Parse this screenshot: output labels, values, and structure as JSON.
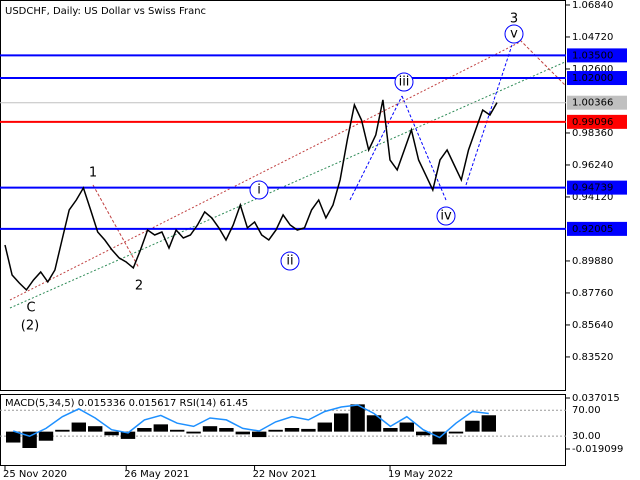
{
  "chart_data": [
    {
      "type": "line",
      "title": "USDCHF, Daily:  US Dollar vs Swiss Franc",
      "categories": [
        "25 Nov 2020",
        null,
        null,
        null,
        null,
        null,
        null,
        null,
        null,
        null,
        null,
        null,
        null,
        null,
        null,
        null,
        null,
        "26 May 2021",
        null,
        null,
        null,
        null,
        null,
        null,
        null,
        null,
        null,
        null,
        null,
        null,
        null,
        null,
        null,
        null,
        null,
        "22 Nov 2021",
        null,
        null,
        null,
        null,
        null,
        null,
        null,
        null,
        null,
        null,
        null,
        null,
        null,
        null,
        null,
        null,
        null,
        null,
        "19 May 2022",
        null,
        null,
        null,
        null,
        null,
        null,
        null,
        null,
        null,
        null,
        null,
        null,
        null,
        null,
        null
      ],
      "color": "#000000",
      "values": [
        0.9094,
        0.8895,
        0.8842,
        0.8796,
        0.8862,
        0.8915,
        0.8849,
        0.8928,
        0.9127,
        0.9326,
        0.9392,
        0.9472,
        0.9326,
        0.918,
        0.9127,
        0.9061,
        0.9008,
        0.8981,
        0.8942,
        0.9061,
        0.9193,
        0.916,
        0.918,
        0.9074,
        0.9193,
        0.914,
        0.916,
        0.9226,
        0.9313,
        0.9273,
        0.9207,
        0.9127,
        0.9226,
        0.9359,
        0.9207,
        0.9246,
        0.916,
        0.9127,
        0.9193,
        0.9293,
        0.9226,
        0.9193,
        0.9207,
        0.9326,
        0.9392,
        0.9273,
        0.9359,
        0.9525,
        0.979,
        1.0022,
        0.9922,
        0.9723,
        0.9823,
        1.0055,
        0.9657,
        0.9591,
        0.9723,
        0.9856,
        0.9657,
        0.9558,
        0.9458,
        0.9657,
        0.9723,
        0.9624,
        0.9525,
        0.9723,
        0.9856,
        0.9988,
        0.9955,
        1.0037
      ],
      "ylim": [
        0.8133,
        1.0717
      ],
      "yticks": [
        {
          "value": 1.0684,
          "label": "1.06840"
        },
        {
          "value": 1.0472,
          "label": "1.04720"
        },
        {
          "value": 1.026,
          "label": "1.02600"
        },
        {
          "value": 0.9836,
          "label": "0.98360"
        },
        {
          "value": 0.9624,
          "label": "0.96240"
        },
        {
          "value": 0.9412,
          "label": "0.94120"
        },
        {
          "value": 0.8988,
          "label": "0.89880"
        },
        {
          "value": 0.8776,
          "label": "0.87760"
        },
        {
          "value": 0.8564,
          "label": "0.85640"
        },
        {
          "value": 0.8352,
          "label": "0.83520"
        }
      ],
      "levels": [
        {
          "value": 1.035,
          "label": "1.03500",
          "color": "#0000ff"
        },
        {
          "value": 1.02,
          "label": "1.02000",
          "color": "#0000ff"
        },
        {
          "value": 0.99096,
          "label": "0.99096",
          "color": "#ff0000"
        },
        {
          "value": 0.94739,
          "label": "0.94739",
          "color": "#0000ff"
        },
        {
          "value": 0.92005,
          "label": "0.92005",
          "color": "#0000ff"
        }
      ],
      "current": {
        "value": 1.00366,
        "label": "1.00366",
        "color": "#c0c0c0"
      },
      "annotations": [
        "3",
        "v",
        "1",
        "iii",
        "i",
        "ii",
        "iv",
        "2",
        "C",
        "(2)"
      ]
    },
    {
      "type": "indicator",
      "title": "MACD(5,34,5) 0.015336 0.015617 RSI(14) 61.45",
      "macd": [
        -0.012,
        -0.018,
        -0.01,
        0.002,
        0.01,
        0.006,
        -0.004,
        -0.008,
        0.004,
        0.008,
        0.002,
        -0.002,
        0.006,
        0.004,
        -0.003,
        -0.006,
        0.002,
        0.004,
        0.003,
        0.01,
        0.02,
        0.03,
        0.018,
        0.004,
        0.01,
        -0.004,
        -0.014,
        -0.002,
        0.012,
        0.018
      ],
      "macd_color": "#000000",
      "rsi": [
        38,
        30,
        42,
        60,
        72,
        58,
        40,
        35,
        55,
        62,
        50,
        45,
        58,
        55,
        42,
        38,
        52,
        60,
        55,
        68,
        75,
        78,
        65,
        45,
        60,
        40,
        28,
        50,
        68,
        65
      ],
      "rsi_color": "#1e90ff",
      "ylim": [
        -0.0378,
        0.0414
      ],
      "yticks": [
        0.037015,
        -0.019099
      ],
      "rsi_ylim": [
        -16,
        95
      ],
      "rsi_yticks": [
        {
          "value": 70,
          "label": "70.00"
        },
        {
          "value": 30,
          "label": "30.00"
        }
      ]
    }
  ]
}
